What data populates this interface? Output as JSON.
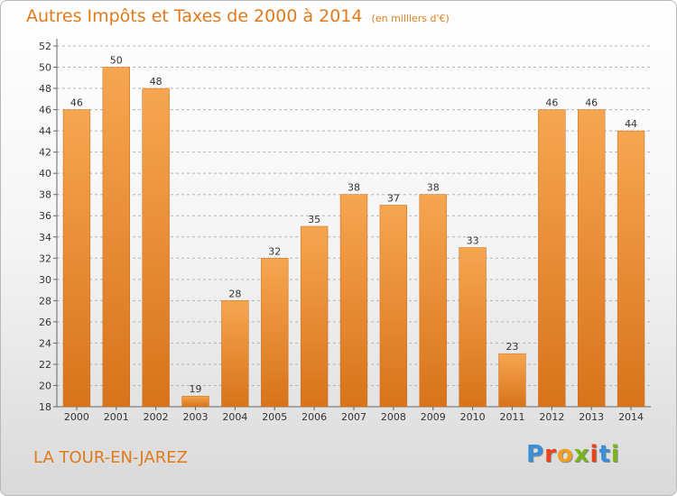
{
  "title": "Autres Impôts et Taxes de 2000 à 2014",
  "subtitle": "(en milliers d'€)",
  "commune": "LA TOUR-EN-JAREZ",
  "logo": {
    "letters": [
      "P",
      "r",
      "o",
      "x",
      "i",
      "t",
      "i"
    ],
    "colors": [
      "#3a8fd6",
      "#e8441c",
      "#f0a020",
      "#7ab51d",
      "#e8441c",
      "#3a8fd6",
      "#7ab51d"
    ]
  },
  "colors": {
    "bar_top": "#f6a650",
    "bar_bottom": "#d8731a",
    "accent": "#e07a1a",
    "grid": "#b5b5b5"
  },
  "chart_data": {
    "type": "bar",
    "categories": [
      "2000",
      "2001",
      "2002",
      "2003",
      "2004",
      "2005",
      "2006",
      "2007",
      "2008",
      "2009",
      "2010",
      "2011",
      "2012",
      "2013",
      "2014"
    ],
    "values": [
      46,
      50,
      48,
      19,
      28,
      32,
      35,
      38,
      37,
      38,
      33,
      23,
      46,
      46,
      44
    ],
    "ylim": [
      18,
      52
    ],
    "yticks": [
      18,
      20,
      22,
      24,
      26,
      28,
      30,
      32,
      34,
      36,
      38,
      40,
      42,
      44,
      46,
      48,
      50,
      52
    ],
    "grid": true,
    "legend": "none"
  }
}
